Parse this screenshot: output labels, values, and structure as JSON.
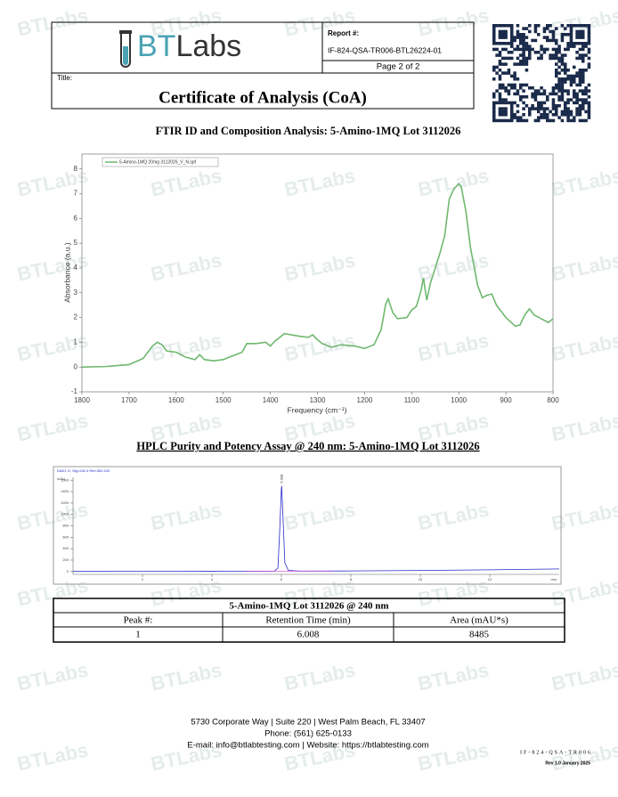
{
  "header": {
    "logo_prefix": "BT",
    "logo_suffix": "Labs",
    "report_label": "Report #:",
    "report_number": "IF-824-QSA-TR006-BTL26224-01",
    "page": "Page 2 of 2",
    "title_label": "Title:",
    "title": "Certificate of Analysis (CoA)"
  },
  "watermark": "BTLabs",
  "ftir": {
    "heading": "FTIR ID and Composition Analysis: 5-Amino-1MQ Lot 3112026",
    "chart": {
      "type": "line",
      "x_label": "Frequency (cm⁻¹)",
      "y_label": "Absorbance (a.u.)",
      "x": [
        1800,
        1750,
        1700,
        1670,
        1650,
        1640,
        1630,
        1620,
        1600,
        1580,
        1560,
        1550,
        1540,
        1520,
        1500,
        1480,
        1460,
        1450,
        1430,
        1410,
        1400,
        1390,
        1370,
        1355,
        1340,
        1320,
        1310,
        1300,
        1290,
        1270,
        1250,
        1220,
        1200,
        1180,
        1165,
        1155,
        1150,
        1140,
        1130,
        1110,
        1100,
        1090,
        1080,
        1075,
        1068,
        1060,
        1050,
        1040,
        1030,
        1020,
        1010,
        1000,
        995,
        985,
        975,
        960,
        950,
        940,
        930,
        920,
        900,
        880,
        870,
        860,
        850,
        840,
        820,
        810,
        800
      ],
      "series": [
        {
          "name": "5-Amino-1MQ 20mg 3112026_V_N.spf",
          "color": "#6fb86f",
          "values": [
            0.0,
            0.02,
            0.1,
            0.35,
            0.85,
            1.0,
            0.9,
            0.65,
            0.6,
            0.4,
            0.3,
            0.5,
            0.3,
            0.25,
            0.3,
            0.45,
            0.6,
            0.95,
            0.95,
            1.0,
            0.85,
            1.05,
            1.35,
            1.3,
            1.25,
            1.2,
            1.3,
            1.1,
            0.95,
            0.8,
            0.9,
            0.85,
            0.75,
            0.9,
            1.5,
            2.55,
            2.75,
            2.2,
            1.95,
            2.0,
            2.3,
            2.45,
            3.1,
            3.6,
            2.7,
            3.4,
            4.0,
            4.6,
            5.3,
            6.8,
            7.2,
            7.4,
            7.3,
            6.3,
            4.8,
            3.3,
            2.8,
            2.9,
            2.95,
            2.5,
            2.0,
            1.65,
            1.7,
            2.1,
            2.35,
            2.1,
            1.9,
            1.8,
            1.95
          ]
        }
      ],
      "xlim": [
        1800,
        800
      ],
      "ylim": [
        -1,
        8.6
      ],
      "xticks": [
        1800,
        1700,
        1600,
        1500,
        1400,
        1300,
        1200,
        1100,
        1000,
        900,
        800
      ],
      "yticks": [
        -1,
        0,
        1,
        2,
        3,
        4,
        5,
        6,
        7,
        8
      ]
    }
  },
  "hplc": {
    "heading": "HPLC Purity and Potency Assay @ 240 nm: 5-Amino-1MQ Lot 3112026",
    "chart": {
      "type": "line",
      "title": "DAD1 G, Sig=240,4 Ref=360,100",
      "x_label": "min",
      "y_label": "mAU",
      "annotation": "6.008",
      "x": [
        0,
        1,
        2,
        3,
        4,
        5,
        5.5,
        5.8,
        5.9,
        5.95,
        6.0,
        6.008,
        6.05,
        6.1,
        6.2,
        6.5,
        7,
        8,
        9,
        10,
        11,
        12,
        13,
        14
      ],
      "series": [
        {
          "name": "240 nm",
          "color": "#2a2acc",
          "values": [
            2,
            2,
            3,
            3,
            4,
            5,
            6,
            8,
            60,
            700,
            1450,
            1500,
            900,
            150,
            20,
            8,
            8,
            10,
            14,
            18,
            24,
            30,
            38,
            46
          ]
        }
      ],
      "xlim": [
        0,
        14
      ],
      "ylim": [
        -50,
        1650
      ],
      "xticks": [
        2,
        4,
        6,
        8,
        10,
        12
      ],
      "yticks": [
        0,
        200,
        400,
        600,
        800,
        1000,
        1200,
        1400,
        1600
      ]
    }
  },
  "table": {
    "title": "5-Amino-1MQ Lot 3112026 @ 240 nm",
    "columns": [
      "Peak #:",
      "Retention Time (min)",
      "Area (mAU*s)"
    ],
    "rows": [
      [
        1,
        6.008,
        8485
      ]
    ]
  },
  "footer": {
    "lines": [
      "5730 Corporate Way | Suite 220 | West Palm Beach, FL 33407",
      "Phone: (561) 625-0133",
      "E-mail: info@btlabtesting.com | Website: https://btlabtesting.com"
    ],
    "doc_code": "IF-824-QSA-TR006",
    "revision": "Rev 1.0 January 2025"
  }
}
